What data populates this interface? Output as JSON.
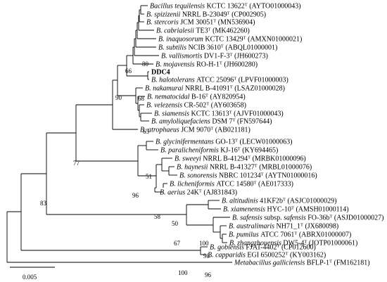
{
  "tree": {
    "taxa": [
      {
        "id": "t1",
        "genus": "Bacillus",
        "epithet": "tequilensis",
        "strain": "KCTC 13622",
        "type_strain": true,
        "accession": "(AYTO01000043)"
      },
      {
        "id": "t2",
        "genus": "B.",
        "epithet": "spizizenii",
        "strain": "NRRL B-23049",
        "type_strain": true,
        "accession": "(CP002905)"
      },
      {
        "id": "t3",
        "genus": "B.",
        "epithet": "stercoris",
        "strain": "JCM 30051",
        "type_strain": true,
        "accession": "(MN536904)"
      },
      {
        "id": "t4",
        "genus": "B.",
        "epithet": "cabrialesii",
        "strain": "TE3",
        "type_strain": true,
        "accession": "(MK462260)"
      },
      {
        "id": "t5",
        "genus": "B.",
        "epithet": "inaquosorum",
        "strain": "KCTC 13429",
        "type_strain": true,
        "accession": "(AMXN01000021)"
      },
      {
        "id": "t6",
        "genus": "B.",
        "epithet": "subtilis",
        "strain": "NCIB 3610",
        "type_strain": true,
        "accession": "(ABQL01000001)"
      },
      {
        "id": "t7",
        "genus": "B.",
        "epithet": "vallismortis",
        "strain": "DV1-F-3",
        "type_strain": true,
        "accession": "(JH600273)"
      },
      {
        "id": "t8",
        "genus": "B.",
        "epithet": "mojavensis",
        "strain": "RO-H-1",
        "type_strain": true,
        "accession": "(JH600280)"
      },
      {
        "id": "t9",
        "genus": "",
        "epithet": "",
        "strain": "DDC4",
        "type_strain": false,
        "accession": "",
        "bold": true
      },
      {
        "id": "t10",
        "genus": "B.",
        "epithet": "halotolerans",
        "strain": "ATCC 25096",
        "type_strain": true,
        "accession": "(LPVF01000003)"
      },
      {
        "id": "t11",
        "genus": "B.",
        "epithet": "nakamurai",
        "strain": "NRRL B-41091",
        "type_strain": true,
        "accession": "(LSAZ01000028)"
      },
      {
        "id": "t12",
        "genus": "B.",
        "epithet": "nematocidal",
        "strain": "B-16",
        "type_strain": true,
        "accession": "(AY820954)"
      },
      {
        "id": "t13",
        "genus": "B.",
        "epithet": "velezensis",
        "strain": "CR-502",
        "type_strain": true,
        "accession": "(AY603658)"
      },
      {
        "id": "t14",
        "genus": "B.",
        "epithet": "siamensis",
        "strain": "KCTC 13613",
        "type_strain": true,
        "accession": "(AJVF01000043)"
      },
      {
        "id": "t15",
        "genus": "B.",
        "epithet": "amyloliquefaciens",
        "strain": "DSM 7",
        "type_strain": true,
        "accession": "(FN597644)"
      },
      {
        "id": "t16",
        "genus": "B.",
        "epithet": "atrophaeus",
        "strain": "JCM 9070",
        "type_strain": true,
        "accession": "(AB021181)"
      },
      {
        "id": "t17",
        "genus": "B.",
        "epithet": "glycinifermentans",
        "strain": "GO-13",
        "type_strain": true,
        "accession": "(LECW01000063)"
      },
      {
        "id": "t18",
        "genus": "B.",
        "epithet": "paralicheniformis",
        "strain": "KJ-16",
        "type_strain": true,
        "accession": "(KY694465)"
      },
      {
        "id": "t19",
        "genus": "B.",
        "epithet": "sweeyi",
        "strain": "NRRL B-41294",
        "type_strain": true,
        "accession": "(MRBK01000096)"
      },
      {
        "id": "t20",
        "genus": "B.",
        "epithet": "haynesii",
        "strain": "NRRL B-41327",
        "type_strain": true,
        "accession": "(MRBL01000076)"
      },
      {
        "id": "t21",
        "genus": "B.",
        "epithet": "sonorensis",
        "strain": "NBRC 101234",
        "type_strain": true,
        "accession": "(AYTN01000016)"
      },
      {
        "id": "t22",
        "genus": "B.",
        "epithet": "licheniformis",
        "strain": "ATCC 14580",
        "type_strain": true,
        "accession": "(AE017333)"
      },
      {
        "id": "t23",
        "genus": "B.",
        "epithet": "aerius",
        "strain": "24K",
        "type_strain": true,
        "accession": "(AJ831843)"
      },
      {
        "id": "t24",
        "genus": "B.",
        "epithet": "altitudinis",
        "strain": "41KF2b",
        "type_strain": true,
        "accession": "(ASJC01000029)"
      },
      {
        "id": "t25",
        "genus": "B.",
        "epithet": "xiamenensis",
        "strain": "HYC-10",
        "type_strain": true,
        "accession": "(AMSH01000114)"
      },
      {
        "id": "t26",
        "genus": "B.",
        "epithet": "safensis",
        "subsp": "subsp.",
        "subsp_name": "safensis",
        "strain": "FO-36b",
        "type_strain": true,
        "accession": "(ASJD01000027)"
      },
      {
        "id": "t27",
        "genus": "B.",
        "epithet": "australimaris",
        "strain": "NH71_1",
        "type_strain": true,
        "accession": "(JX680098)"
      },
      {
        "id": "t28",
        "genus": "B.",
        "epithet": "pumilus",
        "strain": "ATCC 7061",
        "type_strain": true,
        "accession": "(ABRX01000007)"
      },
      {
        "id": "t29",
        "genus": "B.",
        "epithet": "zhangzhouensis",
        "strain": "DW5-4",
        "type_strain": true,
        "accession": "(JOTP01000061)"
      },
      {
        "id": "t30",
        "genus": "B.",
        "epithet": "gobiensis",
        "strain": "FJAT-4402",
        "type_strain": true,
        "accession": "(CP012600)"
      },
      {
        "id": "t31",
        "genus": "B.",
        "epithet": "capparidis",
        "strain": "EGI 6500252",
        "type_strain": true,
        "accession": "(KY003162)"
      },
      {
        "id": "t32",
        "genus": "Metabacillus",
        "epithet": "galliciensis",
        "strain": "BFLP-1",
        "type_strain": true,
        "accession": "(FM162181)"
      }
    ],
    "type_mark": "T",
    "bootstraps": {
      "b66": "66",
      "b80": "80",
      "b90": "90",
      "b68": "68",
      "b65": "65",
      "b77": "77",
      "b83": "83",
      "b51": "51",
      "b96a": "96",
      "b58": "58",
      "b50": "50",
      "b67": "67",
      "b100a": "100",
      "b90b": "90",
      "b96b": "96",
      "b100b": "100"
    },
    "scale_bar": {
      "value": 0.005,
      "label": "0.005"
    }
  }
}
